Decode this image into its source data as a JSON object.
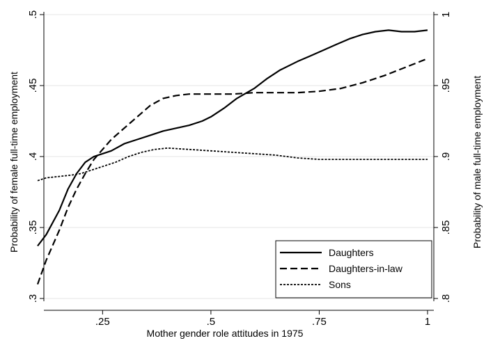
{
  "chart_data": {
    "type": "line",
    "xlabel": "Mother gender role attitudes in 1975",
    "ylabel_left": "Probability of female full-time employment",
    "ylabel_right": "Probability of male full-time employment",
    "xlim": [
      0.1,
      1.0
    ],
    "ylim_left": [
      0.3,
      0.5
    ],
    "ylim_right": [
      0.8,
      1.0
    ],
    "x_ticks": [
      0.25,
      0.5,
      0.75,
      1.0
    ],
    "x_tick_labels": [
      ".25",
      ".5",
      ".75",
      "1"
    ],
    "y_left_ticks": [
      0.3,
      0.35,
      0.4,
      0.45,
      0.5
    ],
    "y_left_tick_labels": [
      ".3",
      ".35",
      ".4",
      ".45",
      ".5"
    ],
    "y_right_ticks": [
      0.8,
      0.85,
      0.9,
      0.95,
      1.0
    ],
    "y_right_tick_labels": [
      ".8",
      ".85",
      ".9",
      ".95",
      "1"
    ],
    "grid": true,
    "legend_position": "bottom-right",
    "series": [
      {
        "name": "Daughters",
        "axis": "left",
        "dash": "solid",
        "x": [
          0.1,
          0.12,
          0.15,
          0.17,
          0.19,
          0.21,
          0.23,
          0.25,
          0.27,
          0.3,
          0.33,
          0.36,
          0.39,
          0.42,
          0.45,
          0.48,
          0.5,
          0.53,
          0.56,
          0.6,
          0.63,
          0.66,
          0.7,
          0.73,
          0.76,
          0.79,
          0.82,
          0.85,
          0.88,
          0.91,
          0.94,
          0.97,
          1.0
        ],
        "y": [
          0.337,
          0.345,
          0.362,
          0.377,
          0.388,
          0.396,
          0.4,
          0.402,
          0.404,
          0.409,
          0.412,
          0.415,
          0.418,
          0.42,
          0.422,
          0.425,
          0.428,
          0.434,
          0.441,
          0.448,
          0.455,
          0.461,
          0.467,
          0.471,
          0.475,
          0.479,
          0.483,
          0.486,
          0.488,
          0.489,
          0.488,
          0.488,
          0.489
        ]
      },
      {
        "name": "Daughters-in-law",
        "axis": "left",
        "dash": "long",
        "x": [
          0.1,
          0.12,
          0.15,
          0.17,
          0.19,
          0.21,
          0.23,
          0.25,
          0.27,
          0.3,
          0.33,
          0.36,
          0.39,
          0.42,
          0.45,
          0.5,
          0.55,
          0.6,
          0.65,
          0.7,
          0.75,
          0.8,
          0.85,
          0.9,
          0.95,
          1.0
        ],
        "y": [
          0.31,
          0.327,
          0.348,
          0.364,
          0.377,
          0.388,
          0.398,
          0.405,
          0.412,
          0.42,
          0.428,
          0.436,
          0.441,
          0.443,
          0.444,
          0.444,
          0.444,
          0.445,
          0.445,
          0.445,
          0.446,
          0.448,
          0.452,
          0.457,
          0.463,
          0.469
        ]
      },
      {
        "name": "Sons",
        "axis": "right",
        "dash": "short",
        "x": [
          0.1,
          0.12,
          0.15,
          0.18,
          0.2,
          0.22,
          0.25,
          0.28,
          0.31,
          0.34,
          0.37,
          0.4,
          0.45,
          0.5,
          0.55,
          0.6,
          0.65,
          0.7,
          0.75,
          0.8,
          0.85,
          0.9,
          0.95,
          1.0
        ],
        "y": [
          0.883,
          0.885,
          0.886,
          0.887,
          0.888,
          0.89,
          0.893,
          0.896,
          0.9,
          0.903,
          0.905,
          0.906,
          0.905,
          0.904,
          0.903,
          0.902,
          0.901,
          0.899,
          0.898,
          0.898,
          0.898,
          0.898,
          0.898,
          0.898
        ]
      }
    ]
  }
}
